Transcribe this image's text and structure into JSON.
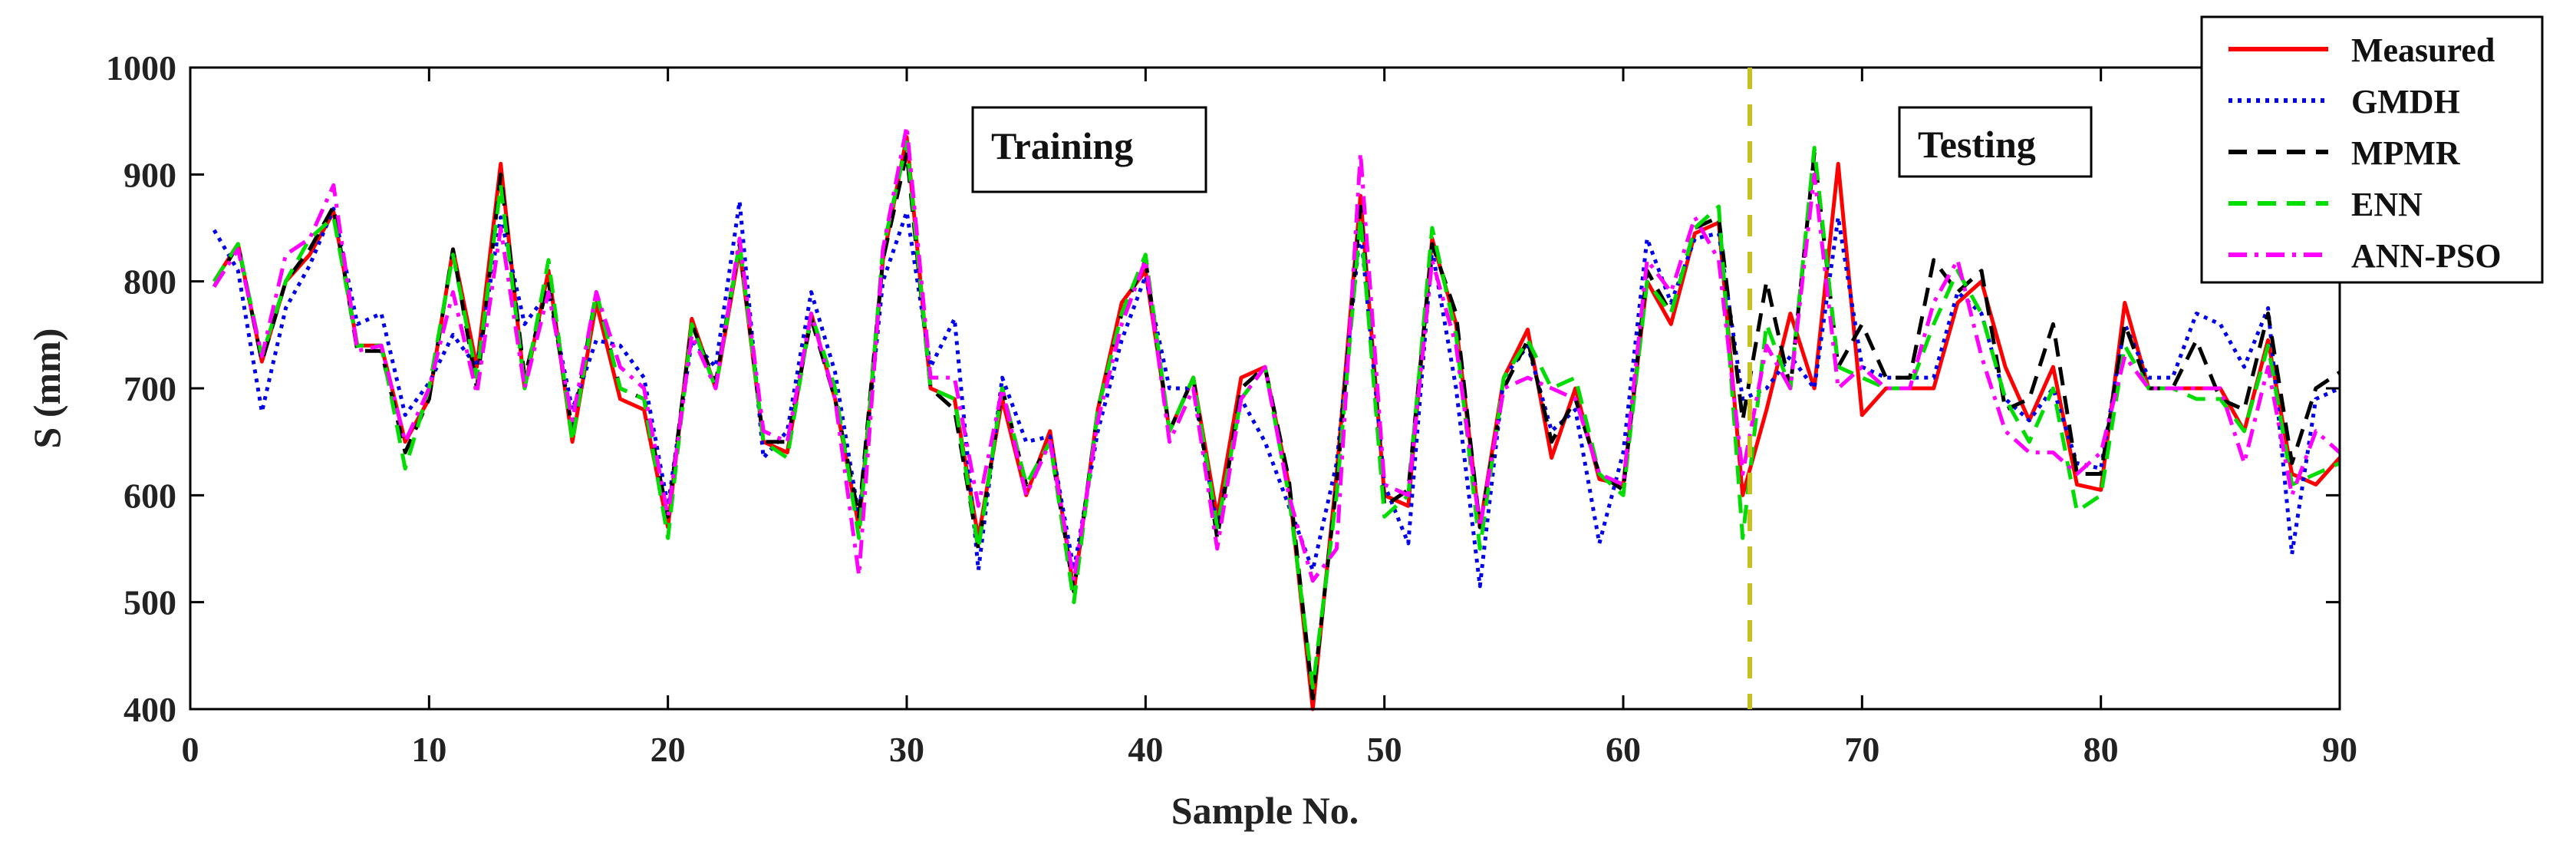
{
  "chart_data": {
    "type": "line",
    "title": "",
    "xlabel": "Sample No.",
    "ylabel": "S (mm)",
    "xlim": [
      0,
      90
    ],
    "ylim": [
      400,
      1000
    ],
    "xticks": [
      0,
      10,
      20,
      30,
      40,
      50,
      60,
      70,
      80,
      90
    ],
    "yticks": [
      400,
      500,
      600,
      700,
      800,
      900,
      1000
    ],
    "grid": false,
    "legend_position": "top-right",
    "x": [
      1,
      2,
      3,
      4,
      5,
      6,
      7,
      8,
      9,
      10,
      11,
      12,
      13,
      14,
      15,
      16,
      17,
      18,
      19,
      20,
      21,
      22,
      23,
      24,
      25,
      26,
      27,
      28,
      29,
      30,
      31,
      32,
      33,
      34,
      35,
      36,
      37,
      38,
      39,
      40,
      41,
      42,
      43,
      44,
      45,
      46,
      47,
      48,
      49,
      50,
      51,
      52,
      53,
      54,
      55,
      56,
      57,
      58,
      59,
      60,
      61,
      62,
      63,
      64,
      65,
      66,
      67,
      68,
      69,
      70,
      71,
      72,
      73,
      74,
      75,
      76,
      77,
      78,
      79,
      80,
      81,
      82,
      83,
      84,
      85,
      86,
      87,
      88,
      89,
      90
    ],
    "series": [
      {
        "name": "Measured",
        "color": "#ff0000",
        "dash": "solid",
        "values": [
          800,
          835,
          725,
          800,
          825,
          865,
          740,
          740,
          650,
          690,
          830,
          720,
          910,
          700,
          810,
          650,
          780,
          690,
          680,
          570,
          765,
          700,
          830,
          650,
          640,
          770,
          690,
          570,
          820,
          935,
          700,
          690,
          560,
          690,
          600,
          660,
          510,
          680,
          780,
          810,
          660,
          710,
          580,
          710,
          720,
          610,
          400,
          620,
          880,
          600,
          590,
          840,
          760,
          570,
          710,
          755,
          635,
          700,
          615,
          610,
          800,
          760,
          845,
          855,
          600,
          680,
          770,
          700,
          910,
          675,
          700,
          700,
          700,
          780,
          800,
          720,
          670,
          720,
          610,
          605,
          780,
          700,
          700,
          700,
          700,
          660,
          745,
          620,
          610,
          635
        ]
      },
      {
        "name": "GMDH",
        "color": "#0000ee",
        "dash": "dotted",
        "values": [
          848,
          810,
          678,
          775,
          815,
          868,
          760,
          770,
          675,
          705,
          750,
          720,
          860,
          760,
          790,
          680,
          745,
          740,
          710,
          590,
          745,
          720,
          875,
          635,
          660,
          790,
          715,
          580,
          800,
          865,
          720,
          765,
          530,
          710,
          650,
          655,
          530,
          660,
          745,
          805,
          700,
          700,
          570,
          690,
          650,
          590,
          530,
          630,
          850,
          610,
          555,
          830,
          700,
          515,
          710,
          740,
          660,
          680,
          555,
          640,
          840,
          780,
          840,
          845,
          690,
          700,
          730,
          700,
          860,
          720,
          710,
          710,
          710,
          790,
          770,
          690,
          670,
          700,
          630,
          625,
          760,
          710,
          710,
          770,
          760,
          720,
          775,
          545,
          690,
          700
        ]
      },
      {
        "name": "MPMR",
        "color": "#000000",
        "dash": "dashed",
        "values": [
          795,
          835,
          725,
          800,
          830,
          870,
          735,
          735,
          640,
          690,
          830,
          700,
          900,
          710,
          800,
          660,
          790,
          700,
          690,
          580,
          760,
          705,
          835,
          650,
          650,
          765,
          690,
          580,
          820,
          920,
          700,
          680,
          550,
          700,
          610,
          650,
          510,
          680,
          770,
          820,
          660,
          710,
          560,
          700,
          720,
          615,
          410,
          610,
          870,
          590,
          605,
          835,
          770,
          570,
          700,
          745,
          650,
          690,
          620,
          605,
          810,
          770,
          850,
          860,
          670,
          800,
          700,
          920,
          720,
          760,
          710,
          710,
          820,
          790,
          810,
          680,
          690,
          760,
          620,
          620,
          760,
          700,
          700,
          745,
          690,
          680,
          770,
          630,
          700,
          715
        ]
      },
      {
        "name": "ENN",
        "color": "#00dd00",
        "dash": "dashed",
        "values": [
          800,
          835,
          730,
          800,
          840,
          860,
          740,
          740,
          625,
          700,
          825,
          710,
          890,
          700,
          820,
          650,
          790,
          700,
          690,
          560,
          760,
          700,
          835,
          650,
          635,
          770,
          700,
          560,
          830,
          930,
          700,
          690,
          550,
          700,
          610,
          650,
          500,
          680,
          770,
          825,
          660,
          710,
          570,
          690,
          720,
          600,
          420,
          600,
          860,
          580,
          600,
          850,
          750,
          550,
          710,
          745,
          700,
          710,
          620,
          600,
          800,
          770,
          850,
          870,
          560,
          760,
          700,
          925,
          720,
          710,
          700,
          700,
          760,
          810,
          770,
          690,
          650,
          700,
          585,
          600,
          740,
          700,
          700,
          690,
          690,
          660,
          740,
          610,
          620,
          630
        ]
      },
      {
        "name": "ANN-PSO",
        "color": "#ff00ff",
        "dash": "dashdot",
        "values": [
          795,
          830,
          730,
          825,
          840,
          890,
          735,
          740,
          650,
          700,
          790,
          695,
          850,
          700,
          790,
          670,
          790,
          720,
          700,
          580,
          750,
          700,
          840,
          660,
          650,
          770,
          690,
          525,
          830,
          945,
          710,
          710,
          590,
          700,
          600,
          650,
          520,
          670,
          760,
          820,
          650,
          700,
          550,
          690,
          720,
          600,
          520,
          550,
          920,
          610,
          600,
          820,
          740,
          570,
          700,
          710,
          700,
          690,
          620,
          610,
          820,
          790,
          860,
          820,
          620,
          740,
          700,
          900,
          700,
          720,
          700,
          700,
          780,
          820,
          730,
          660,
          640,
          640,
          620,
          640,
          730,
          700,
          700,
          700,
          700,
          630,
          720,
          600,
          660,
          640
        ]
      }
    ],
    "annotations": {
      "training_label": "Training",
      "testing_label": "Testing",
      "split_x": 65.3,
      "split_color": "#c8c020"
    }
  }
}
